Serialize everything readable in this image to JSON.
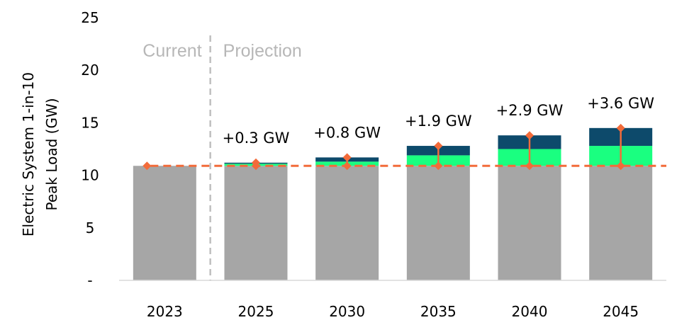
{
  "chart_data": {
    "type": "bar",
    "stacked": true,
    "ylabel_lines": [
      "Electric System 1-in-10",
      "Peak Load  (GW)"
    ],
    "ylim": [
      0,
      25
    ],
    "yticks": [
      {
        "value": 0,
        "label": "-"
      },
      {
        "value": 5,
        "label": "5"
      },
      {
        "value": 10,
        "label": "10"
      },
      {
        "value": 15,
        "label": "15"
      },
      {
        "value": 20,
        "label": "20"
      },
      {
        "value": 25,
        "label": "25"
      }
    ],
    "categories": [
      "2023",
      "2025",
      "2030",
      "2035",
      "2040",
      "2045"
    ],
    "series": [
      {
        "color": "#a6a6a6",
        "values": [
          10.9,
          10.9,
          10.9,
          10.9,
          10.9,
          10.9
        ]
      },
      {
        "color": "#1aff80",
        "values": [
          0,
          0.2,
          0.4,
          1.0,
          1.6,
          1.9
        ]
      },
      {
        "color": "#0d4a6b",
        "values": [
          0,
          0.1,
          0.4,
          0.9,
          1.3,
          1.7
        ]
      }
    ],
    "data_labels": [
      "",
      "+0.3 GW",
      "+0.8 GW",
      "+1.9 GW",
      "+2.9 GW",
      "+3.6 GW"
    ],
    "baseline": {
      "value": 10.9,
      "color": "#f26b3a",
      "style": "dashed"
    },
    "increment_marker_color": "#f26b3a",
    "regions": {
      "current_label": "Current",
      "projection_label": "Projection",
      "divider_style": "dashed",
      "divider_color": "#bfbfbf"
    },
    "legend": "none",
    "grid": false
  }
}
